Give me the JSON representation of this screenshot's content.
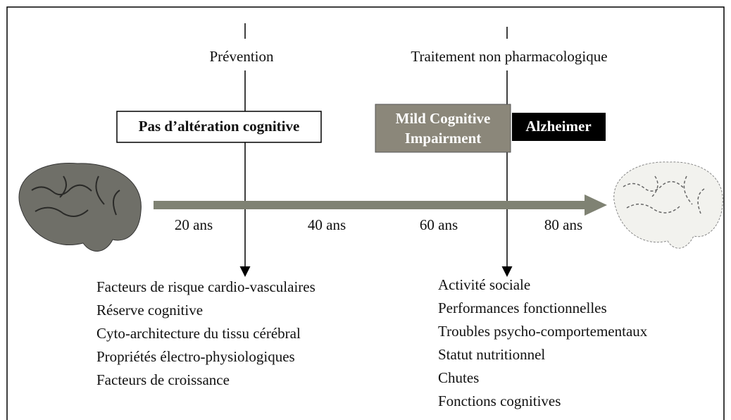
{
  "phases": {
    "prevention": "Prévention",
    "treatment": "Traitement non pharmacologique"
  },
  "stages": {
    "normal": "Pas d’altération cognitive",
    "mci": [
      "Mild Cognitive",
      "Impairment"
    ],
    "alzheimer": "Alzheimer"
  },
  "ages": [
    "20 ans",
    "40 ans",
    "60 ans",
    "80 ans"
  ],
  "prevention_factors": [
    "Facteurs de risque cardio-vasculaires",
    "Réserve cognitive",
    "Cyto-architecture du tissu cérébral",
    "Propriétés électro-physiologiques",
    "Facteurs de croissance"
  ],
  "treatment_factors": [
    "Activité sociale",
    "Performances fonctionnelles",
    "Troubles psycho-comportementaux",
    "Statut nutritionnel",
    "Chutes",
    "Fonctions cognitives"
  ]
}
